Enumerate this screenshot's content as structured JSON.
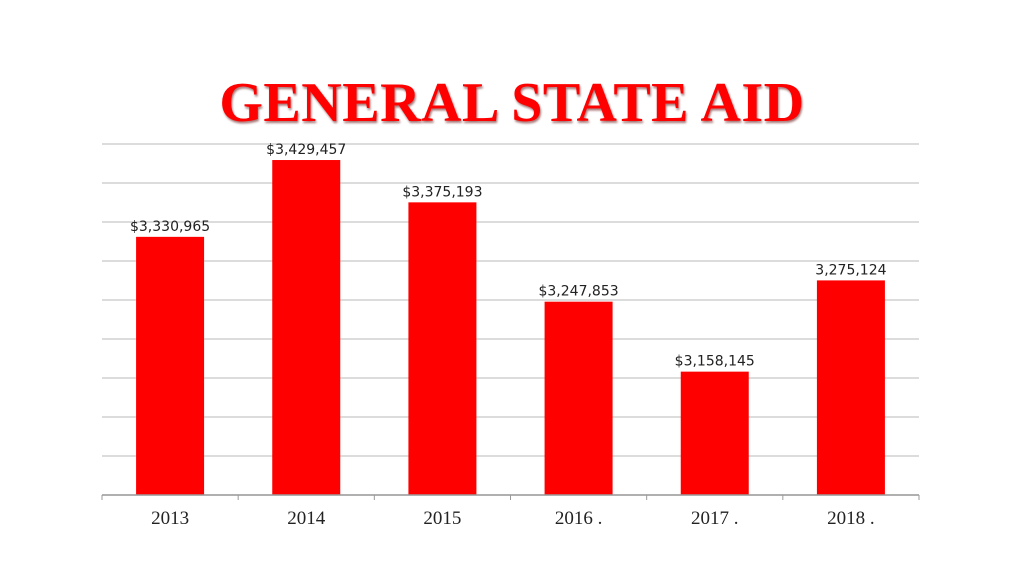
{
  "chart_data": {
    "type": "bar",
    "title": "GENERAL STATE AID",
    "xlabel": "",
    "ylabel": "",
    "categories": [
      "2013",
      "2014",
      "2015",
      "2016 .",
      "2017 .",
      "2018 ."
    ],
    "values": [
      3330965,
      3429457,
      3375193,
      3247853,
      3158145,
      3275124
    ],
    "data_labels": [
      "$3,330,965",
      "$3,429,457",
      "$3,375,193",
      "$3,247,853",
      "$3,158,145",
      "3,275,124"
    ],
    "ylim": [
      3000000,
      3450000
    ],
    "grid": true,
    "legend": "none",
    "bar_color": "#ff0000",
    "grid_color": "#c8c8c8"
  }
}
